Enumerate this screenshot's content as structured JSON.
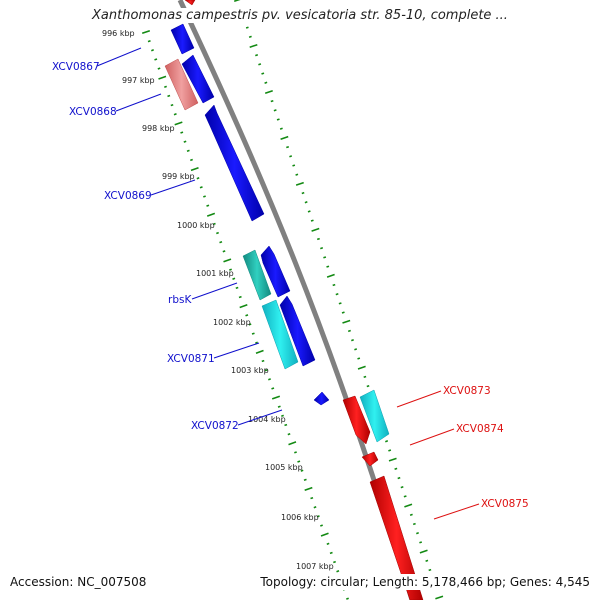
{
  "title": "Xanthomonas campestris pv. vesicatoria str. 85-10, complete ...",
  "accession_label": "Accession: NC_007508",
  "summary_label": "Topology: circular; Length: 5,178,466 bp; Genes: 4,545",
  "tick_labels": [
    "996 kbp",
    "997 kbp",
    "998 kbp",
    "999 kbp",
    "1000 kbp",
    "1001 kbp",
    "1002 kbp",
    "1003 kbp",
    "1004 kbp",
    "1005 kbp",
    "1006 kbp",
    "1007 kbp"
  ],
  "genes_left": [
    {
      "label": "XCV0867",
      "color": "#1010cc"
    },
    {
      "label": "XCV0868",
      "color": "#1010cc"
    },
    {
      "label": "XCV0869",
      "color": "#1010cc"
    },
    {
      "label": "rbsK",
      "color": "#1010cc"
    },
    {
      "label": "XCV0871",
      "color": "#1010cc"
    },
    {
      "label": "XCV0872",
      "color": "#1010cc"
    }
  ],
  "genes_right": [
    {
      "label": "XCV0873",
      "color": "#dd1111"
    },
    {
      "label": "XCV0874",
      "color": "#dd1111"
    },
    {
      "label": "XCV0875",
      "color": "#dd1111"
    }
  ],
  "colors": {
    "backbone": "#808080",
    "tick": "#138a13",
    "forward_gene": "#0c0cd6",
    "reverse_gene": "#e61010",
    "cyan_gene": "#19e6e6",
    "teal_gene": "#18b8a8",
    "pink_gene": "#e88080"
  }
}
